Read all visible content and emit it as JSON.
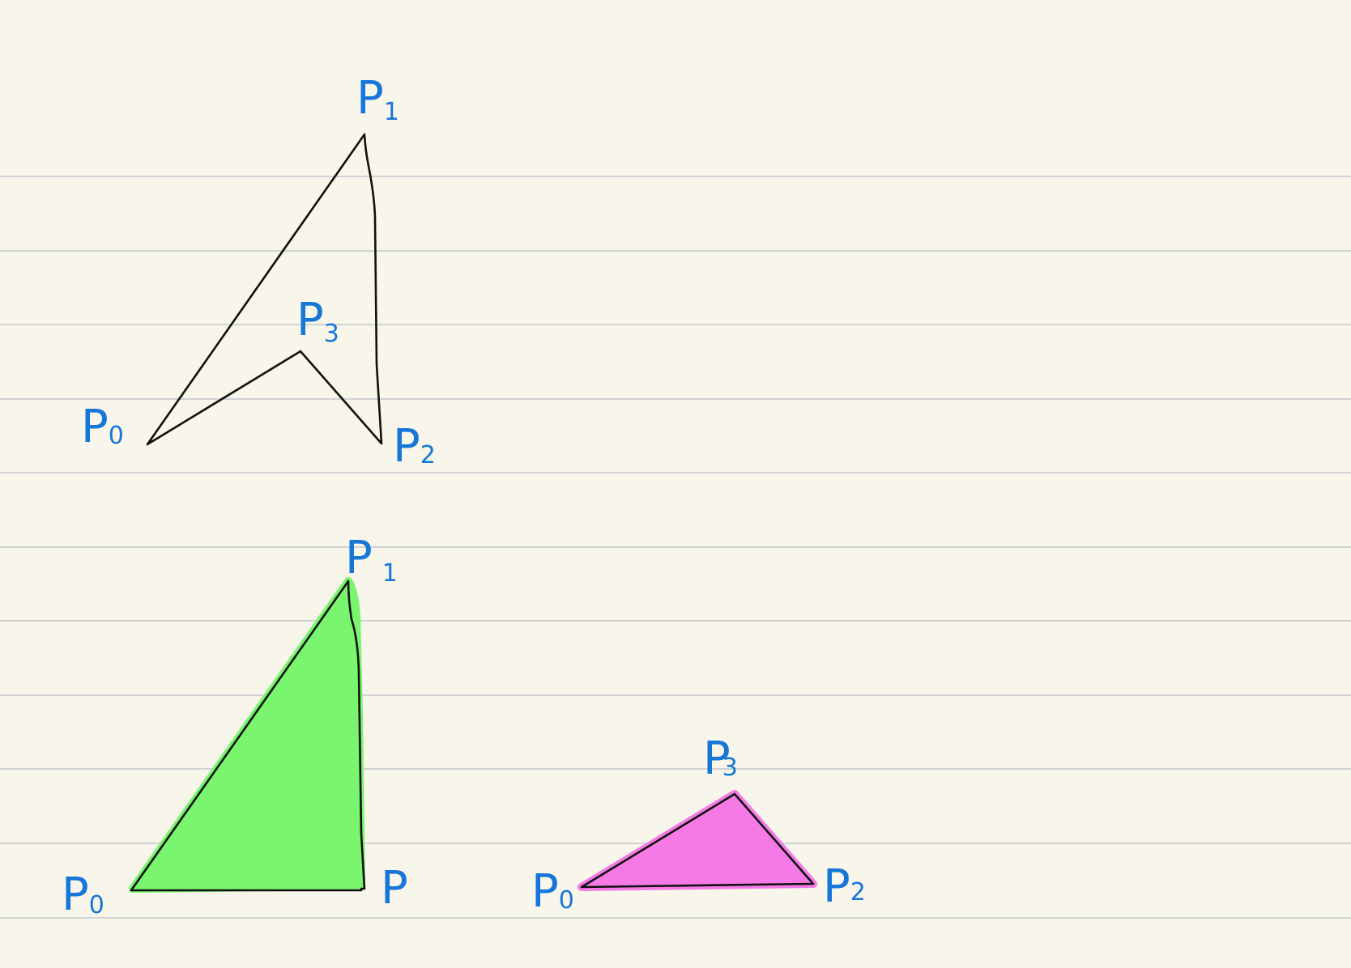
{
  "colors": {
    "paper": "#f8f5ea",
    "rule": "#cfd3d3",
    "ink": "#111111",
    "label": "#1677d8",
    "highlight_green": "#79f56e",
    "highlight_pink": "#f57ae6"
  },
  "figures": {
    "top_quad": {
      "p0": {
        "letter": "P",
        "sub": "0"
      },
      "p1": {
        "letter": "P",
        "sub": "1"
      },
      "p2": {
        "letter": "P",
        "sub": "2"
      },
      "p3": {
        "letter": "P",
        "sub": "3"
      }
    },
    "green_triangle": {
      "fill": "#79f56e",
      "p0": {
        "letter": "P",
        "sub": "0"
      },
      "p1": {
        "letter": "P",
        "sub": "1"
      },
      "p2": {
        "letter": "P",
        "sub": ""
      }
    },
    "pink_triangle": {
      "fill": "#f57ae6",
      "p0": {
        "letter": "P",
        "sub": "0"
      },
      "p2": {
        "letter": "P",
        "sub": "2"
      },
      "p3": {
        "letter": "P",
        "sub": "3"
      }
    }
  }
}
